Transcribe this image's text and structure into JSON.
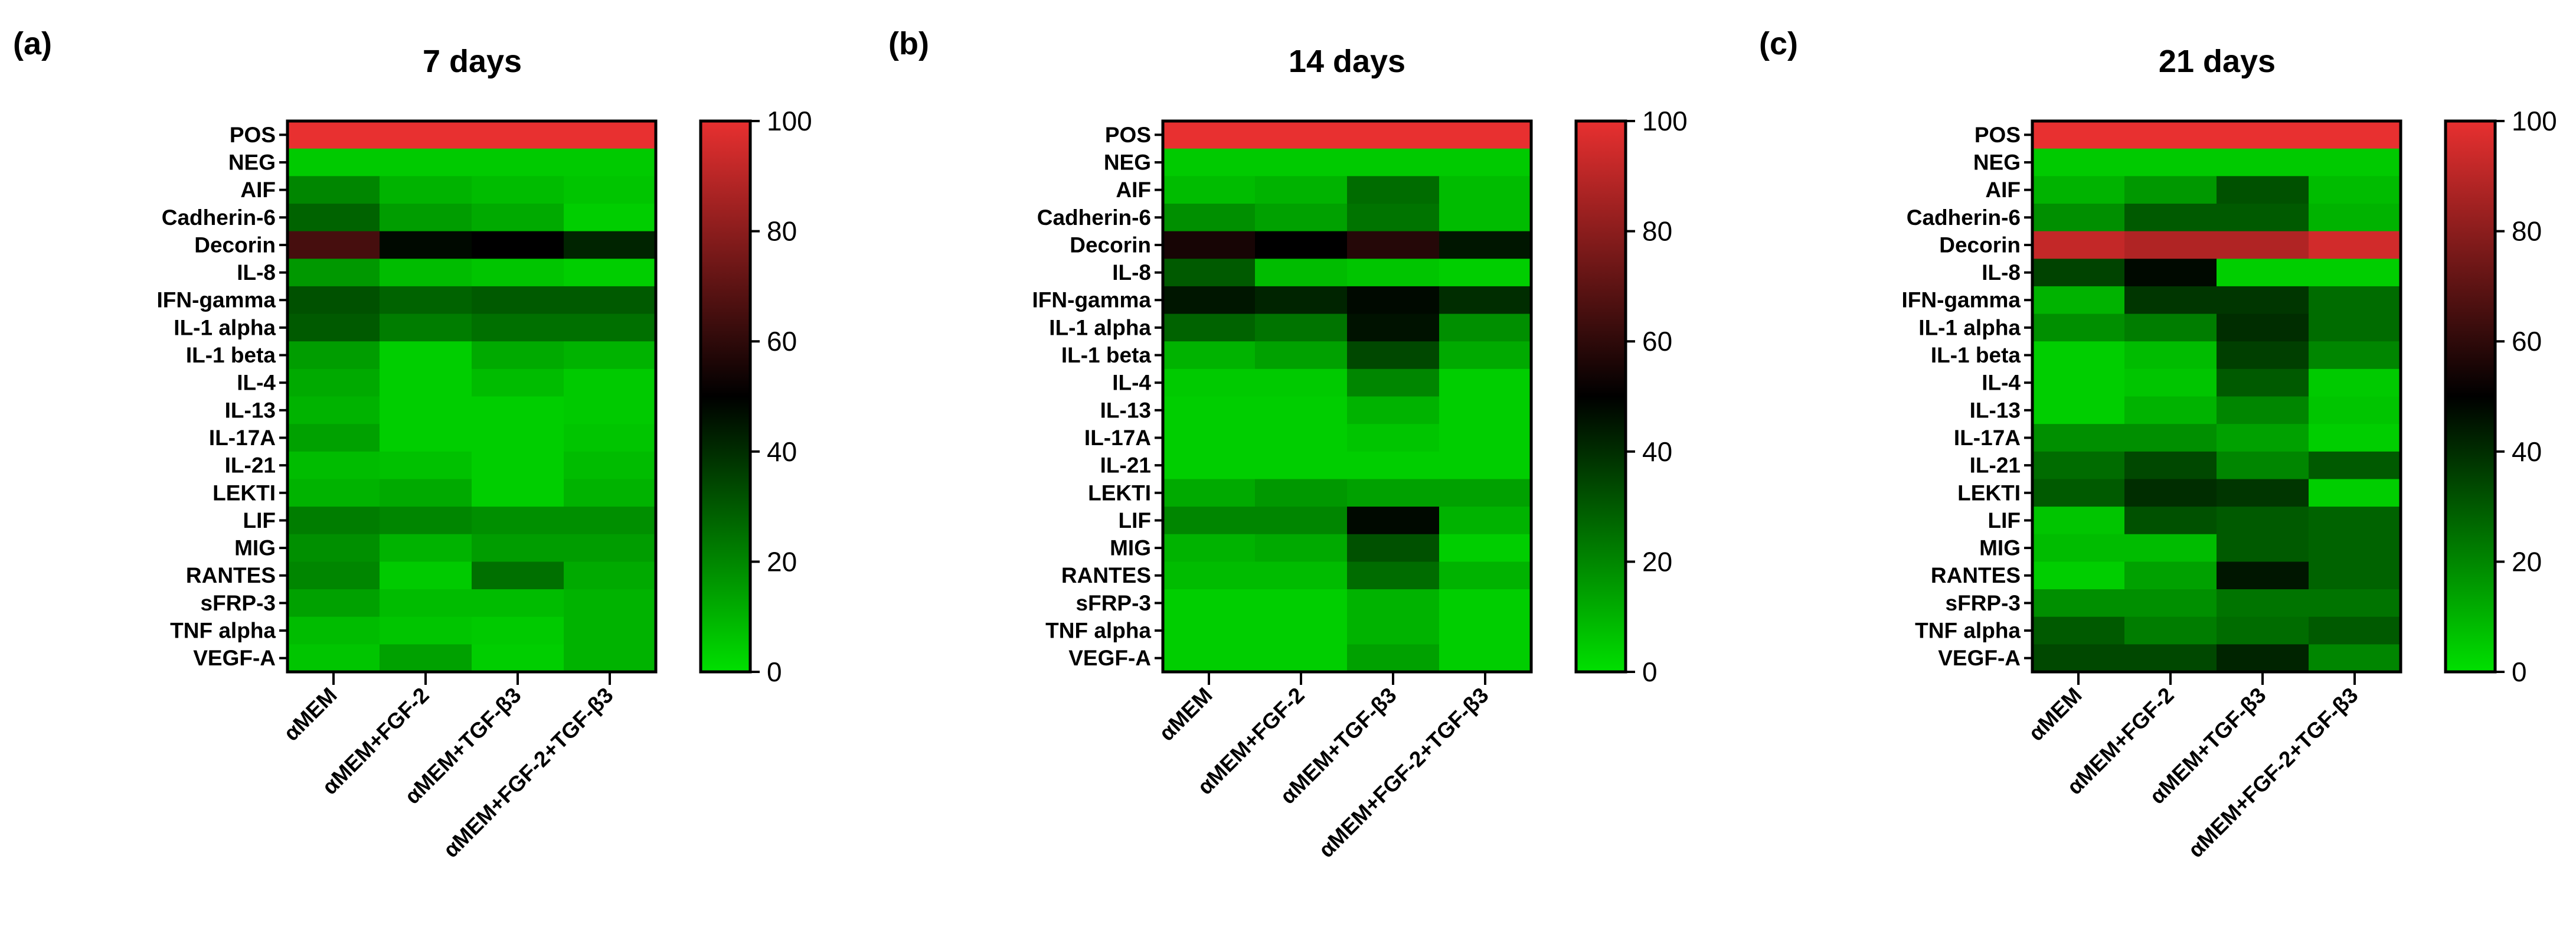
{
  "chart_data": [
    {
      "type": "heatmap",
      "panel_label": "(a)",
      "title": "7 days",
      "rows": [
        "POS",
        "NEG",
        "AIF",
        "Cadherin-6",
        "Decorin",
        "IL-8",
        "IFN-gamma",
        "IL-1 alpha",
        "IL-1 beta",
        "IL-4",
        "IL-13",
        "IL-17A",
        "IL-21",
        "LEKTI",
        "LIF",
        "MIG",
        "RANTES",
        "sFRP-3",
        "TNF alpha",
        "VEGF-A"
      ],
      "columns": [
        "αMEM",
        "αMEM+FGF-2",
        "αMEM+TGF-β3",
        "αMEM+FGF-2+TGF-β3"
      ],
      "values": [
        [
          100,
          100,
          100,
          100
        ],
        [
          5,
          5,
          5,
          5
        ],
        [
          20,
          10,
          8,
          6
        ],
        [
          28,
          15,
          12,
          4
        ],
        [
          65,
          48,
          50,
          42
        ],
        [
          16,
          8,
          6,
          4
        ],
        [
          32,
          28,
          30,
          30
        ],
        [
          30,
          22,
          25,
          25
        ],
        [
          15,
          4,
          12,
          10
        ],
        [
          12,
          4,
          8,
          5
        ],
        [
          10,
          4,
          4,
          5
        ],
        [
          14,
          4,
          4,
          6
        ],
        [
          8,
          7,
          4,
          8
        ],
        [
          10,
          12,
          4,
          10
        ],
        [
          22,
          20,
          18,
          18
        ],
        [
          18,
          10,
          15,
          15
        ],
        [
          20,
          5,
          25,
          12
        ],
        [
          14,
          8,
          8,
          10
        ],
        [
          8,
          6,
          5,
          10
        ],
        [
          6,
          14,
          4,
          10
        ]
      ],
      "colorbar": {
        "min": 0,
        "max": 100,
        "ticks": [
          0,
          20,
          40,
          60,
          80,
          100
        ]
      }
    },
    {
      "type": "heatmap",
      "panel_label": "(b)",
      "title": "14 days",
      "rows": [
        "POS",
        "NEG",
        "AIF",
        "Cadherin-6",
        "Decorin",
        "IL-8",
        "IFN-gamma",
        "IL-1 alpha",
        "IL-1 beta",
        "IL-4",
        "IL-13",
        "IL-17A",
        "IL-21",
        "LEKTI",
        "LIF",
        "MIG",
        "RANTES",
        "sFRP-3",
        "TNF alpha",
        "VEGF-A"
      ],
      "columns": [
        "αMEM",
        "αMEM+FGF-2",
        "αMEM+TGF-β3",
        "αMEM+FGF-2+TGF-β3"
      ],
      "values": [
        [
          100,
          100,
          100,
          100
        ],
        [
          5,
          5,
          5,
          5
        ],
        [
          8,
          10,
          26,
          8
        ],
        [
          18,
          14,
          24,
          8
        ],
        [
          55,
          50,
          58,
          45
        ],
        [
          30,
          8,
          6,
          4
        ],
        [
          45,
          42,
          48,
          40
        ],
        [
          28,
          24,
          46,
          18
        ],
        [
          10,
          14,
          34,
          12
        ],
        [
          5,
          5,
          20,
          4
        ],
        [
          4,
          4,
          10,
          4
        ],
        [
          4,
          4,
          6,
          4
        ],
        [
          4,
          4,
          4,
          4
        ],
        [
          12,
          16,
          14,
          14
        ],
        [
          20,
          20,
          48,
          10
        ],
        [
          10,
          12,
          32,
          4
        ],
        [
          8,
          8,
          26,
          10
        ],
        [
          4,
          4,
          10,
          4
        ],
        [
          4,
          4,
          10,
          4
        ],
        [
          4,
          4,
          14,
          4
        ]
      ],
      "colorbar": {
        "min": 0,
        "max": 100,
        "ticks": [
          0,
          20,
          40,
          60,
          80,
          100
        ]
      }
    },
    {
      "type": "heatmap",
      "panel_label": "(c)",
      "title": "21 days",
      "rows": [
        "POS",
        "NEG",
        "AIF",
        "Cadherin-6",
        "Decorin",
        "IL-8",
        "IFN-gamma",
        "IL-1 alpha",
        "IL-1 beta",
        "IL-4",
        "IL-13",
        "IL-17A",
        "IL-21",
        "LEKTI",
        "LIF",
        "MIG",
        "RANTES",
        "sFRP-3",
        "TNF alpha",
        "VEGF-A"
      ],
      "columns": [
        "αMEM",
        "αMEM+FGF-2",
        "αMEM+TGF-β3",
        "αMEM+FGF-2+TGF-β3"
      ],
      "values": [
        [
          100,
          100,
          100,
          100
        ],
        [
          5,
          5,
          5,
          5
        ],
        [
          10,
          16,
          32,
          8
        ],
        [
          18,
          30,
          30,
          10
        ],
        [
          92,
          88,
          88,
          95
        ],
        [
          35,
          48,
          4,
          4
        ],
        [
          10,
          38,
          38,
          26
        ],
        [
          18,
          22,
          40,
          26
        ],
        [
          4,
          8,
          36,
          20
        ],
        [
          4,
          6,
          30,
          5
        ],
        [
          4,
          10,
          20,
          6
        ],
        [
          18,
          18,
          14,
          4
        ],
        [
          26,
          34,
          20,
          30
        ],
        [
          30,
          40,
          38,
          4
        ],
        [
          6,
          32,
          30,
          28
        ],
        [
          8,
          8,
          30,
          28
        ],
        [
          4,
          14,
          45,
          28
        ],
        [
          18,
          18,
          24,
          24
        ],
        [
          30,
          22,
          26,
          30
        ],
        [
          34,
          34,
          42,
          20
        ]
      ],
      "colorbar": {
        "min": 0,
        "max": 100,
        "ticks": [
          0,
          20,
          40,
          60,
          80,
          100
        ]
      }
    }
  ]
}
